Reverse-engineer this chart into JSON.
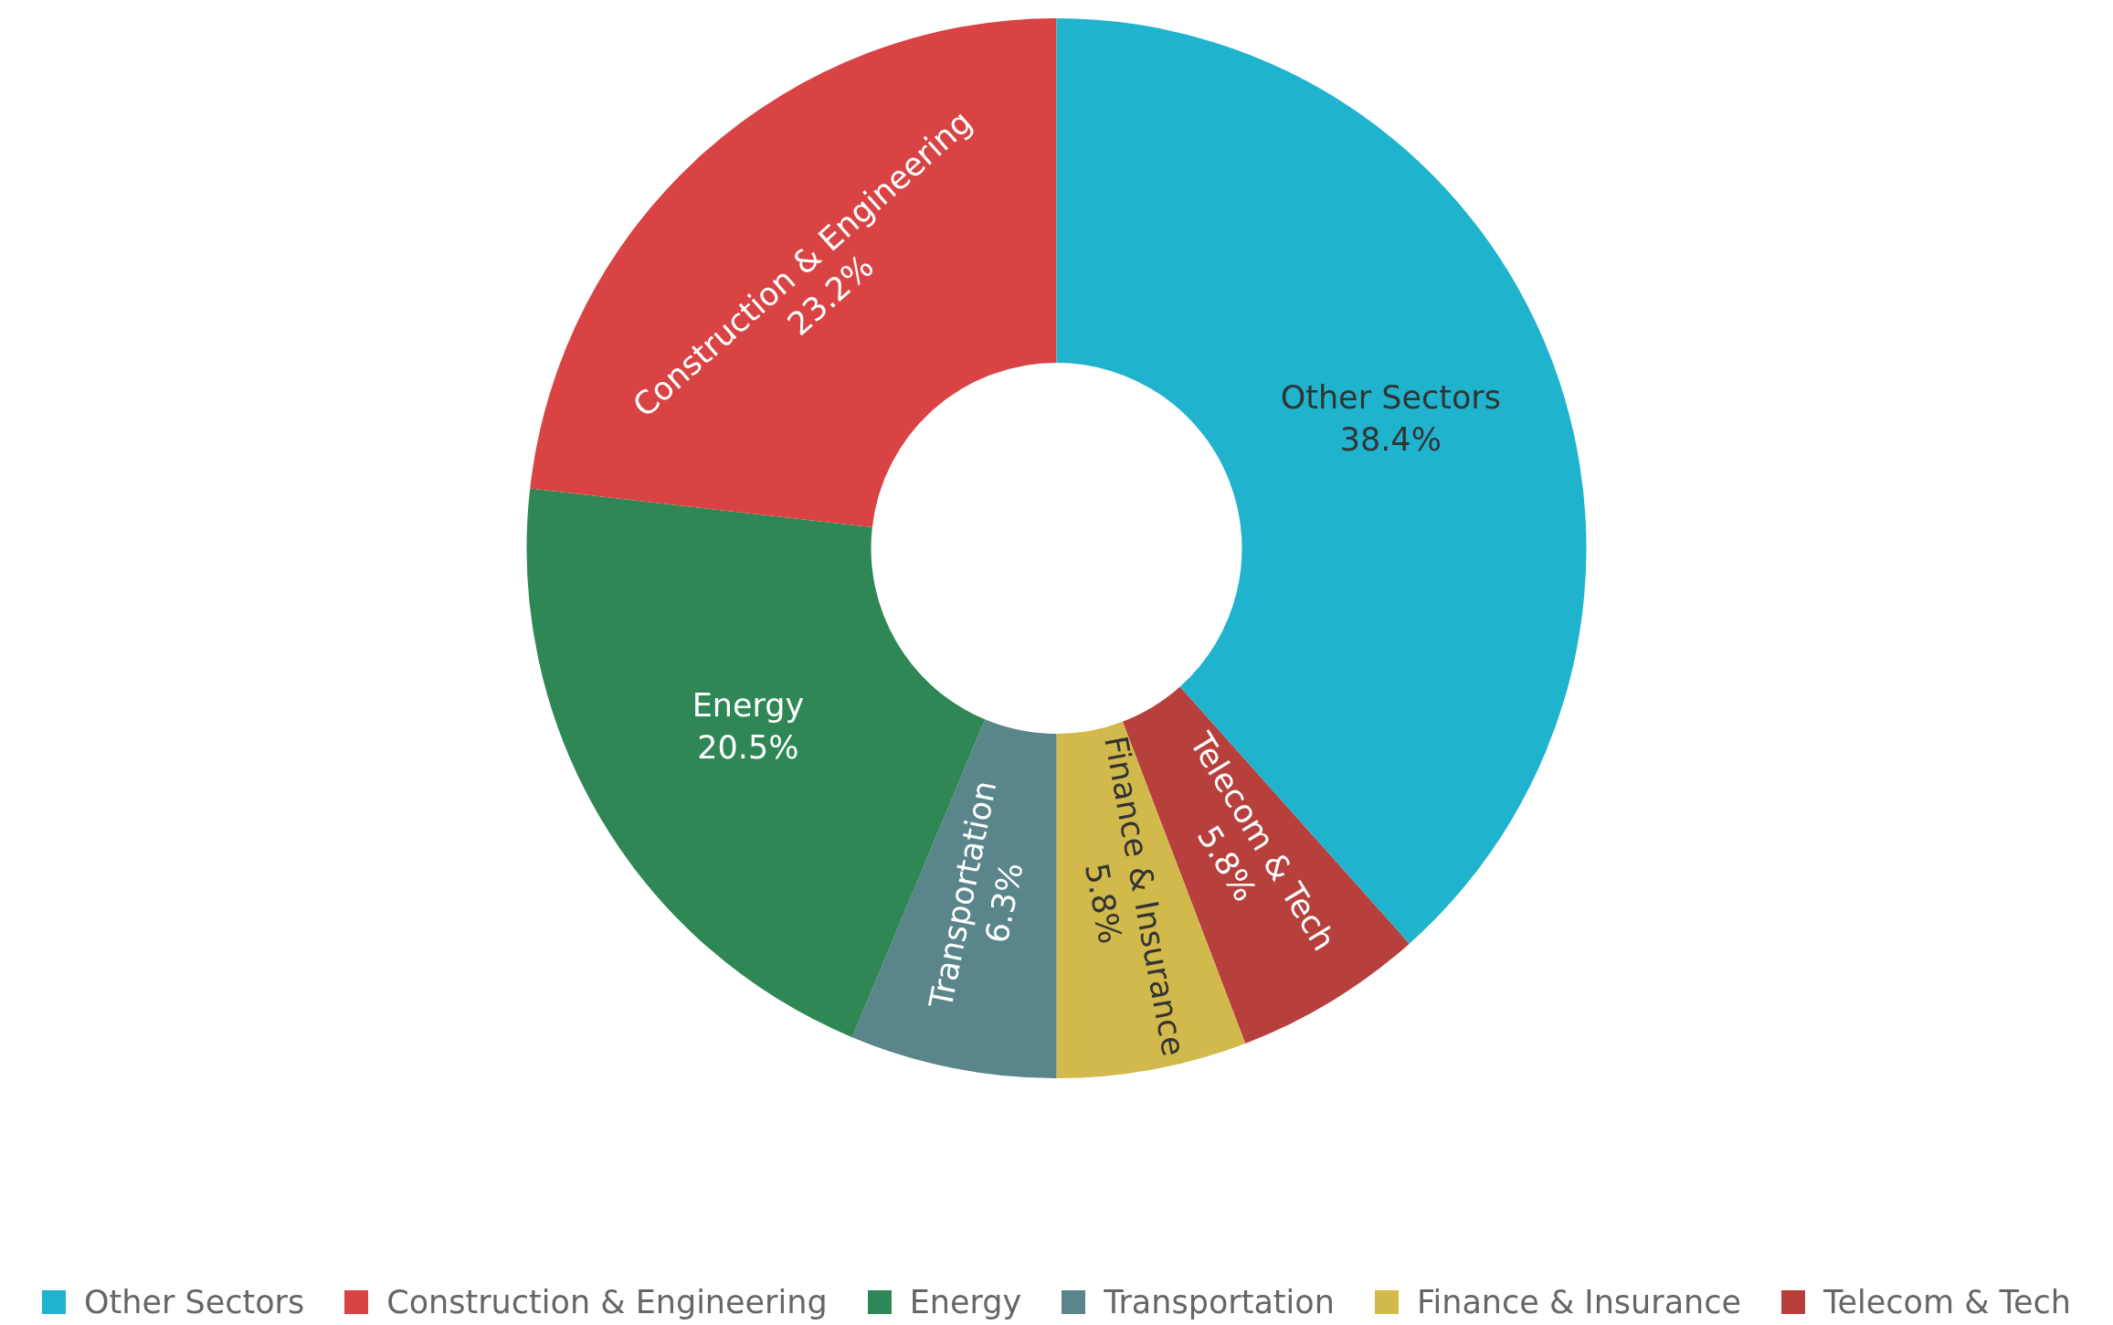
{
  "chart_data": {
    "type": "donut",
    "categories": [
      "Other Sectors",
      "Construction & Engineering",
      "Energy",
      "Transportation",
      "Finance & Insurance",
      "Telecom & Tech"
    ],
    "values": [
      38.4,
      23.2,
      20.5,
      6.3,
      5.8,
      5.8
    ],
    "value_labels": [
      "38.4%",
      "23.2%",
      "20.5%",
      "6.3%",
      "5.8%",
      "5.8%"
    ],
    "colors": [
      "#1fb3cd",
      "#d94343",
      "#2e8754",
      "#5a858a",
      "#d1b94c",
      "#b7403c"
    ],
    "legend": "bottom"
  }
}
